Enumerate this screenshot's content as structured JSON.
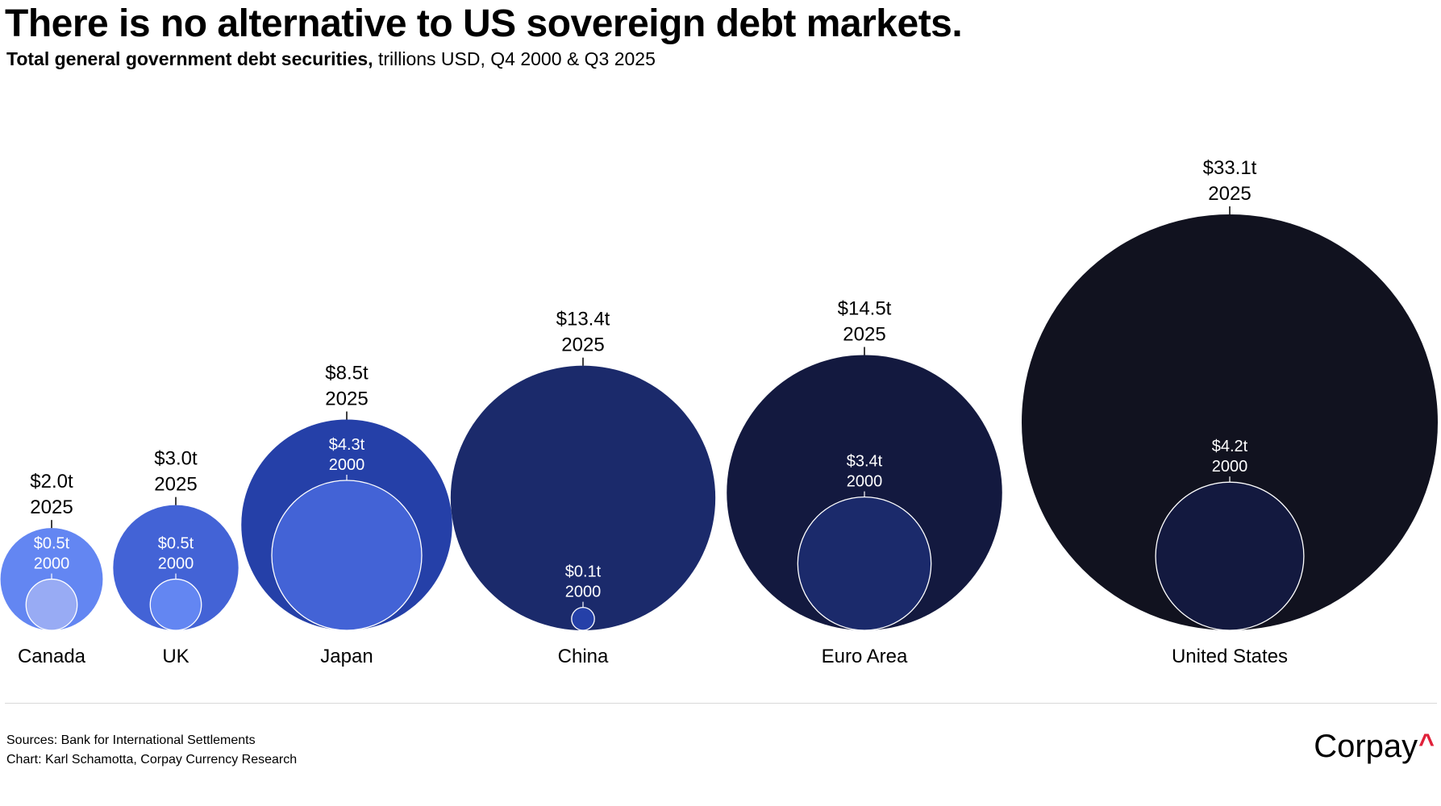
{
  "header": {
    "title": "There is no alternative to US sovereign debt markets.",
    "subtitle_bold": "Total general government debt securities,",
    "subtitle_rest": " trillions USD, Q4 2000 & Q3 2025"
  },
  "chart_data": {
    "type": "bubble",
    "title": "There is no alternative to US sovereign debt markets.",
    "subtitle": "Total general government debt securities, trillions USD, Q4 2000 & Q3 2025",
    "unit": "trillions USD",
    "series": [
      {
        "name": "2025",
        "period": "Q3 2025"
      },
      {
        "name": "2000",
        "period": "Q4 2000"
      }
    ],
    "categories": [
      "Canada",
      "UK",
      "Japan",
      "China",
      "Euro Area",
      "United States"
    ],
    "points": [
      {
        "country": "Canada",
        "v2025": 2.0,
        "label2025": "$2.0t",
        "year2025": "2025",
        "v2000": 0.5,
        "label2000": "$0.5t",
        "year2000": "2000",
        "color2025": "#6386f2",
        "color2000": "#98abf4"
      },
      {
        "country": "UK",
        "v2025": 3.0,
        "label2025": "$3.0t",
        "year2025": "2025",
        "v2000": 0.5,
        "label2000": "$0.5t",
        "year2000": "2000",
        "color2025": "#4363d6",
        "color2000": "#6386f2"
      },
      {
        "country": "Japan",
        "v2025": 8.5,
        "label2025": "$8.5t",
        "year2025": "2025",
        "v2000": 4.3,
        "label2000": "$4.3t",
        "year2000": "2000",
        "color2025": "#2540a8",
        "color2000": "#4363d6"
      },
      {
        "country": "China",
        "v2025": 13.4,
        "label2025": "$13.4t",
        "year2025": "2025",
        "v2000": 0.1,
        "label2000": "$0.1t",
        "year2000": "2000",
        "color2025": "#1b2a6b",
        "color2000": "#2540a8"
      },
      {
        "country": "Euro Area",
        "v2025": 14.5,
        "label2025": "$14.5t",
        "year2025": "2025",
        "v2000": 3.4,
        "label2000": "$3.4t",
        "year2000": "2000",
        "color2025": "#13193f",
        "color2000": "#1b2a6b"
      },
      {
        "country": "United States",
        "v2025": 33.1,
        "label2025": "$33.1t",
        "year2025": "2025",
        "v2000": 4.2,
        "label2000": "$4.2t",
        "year2000": "2000",
        "color2025": "#11121f",
        "color2000": "#13193f"
      }
    ]
  },
  "footer": {
    "source_line": "Sources: Bank for International Settlements",
    "chart_line": "Chart: Karl Schamotta, Corpay Currency Research",
    "logo_text": "Corpay",
    "logo_caret": "^"
  }
}
